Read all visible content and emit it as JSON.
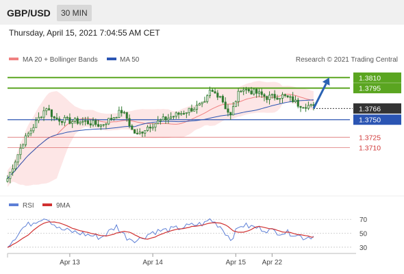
{
  "header": {
    "symbol": "GBP/USD",
    "timeframe": "30 MIN"
  },
  "timestamp": "Thursday, April 15, 2021 7:04:55 AM CET",
  "colors": {
    "resistance": "#5aa520",
    "support": "#2b55b3",
    "secondary": "#d03a3a",
    "bollinger_fill": "#fde6e6",
    "ma20": "#f08080",
    "ma50": "#2b55b3",
    "candle": "#2f7a2f",
    "arrow": "#2b63b3",
    "current": "#333333",
    "rsi": "#5d7fd6",
    "rsi_ma": "#d03030"
  },
  "chart_data": [
    {
      "type": "candlestick",
      "legend": [
        {
          "label": "MA 20 + Bollinger Bands",
          "color": "#f08080"
        },
        {
          "label": "MA 50",
          "color": "#2b55b3"
        }
      ],
      "credit": "Research © 2021 Trading Central",
      "ylim": [
        1.3653,
        1.3823
      ],
      "levels": [
        {
          "value": 1.381,
          "label": "1.3810",
          "kind": "resistance"
        },
        {
          "value": 1.3795,
          "label": "1.3795",
          "kind": "resistance"
        },
        {
          "value": 1.3766,
          "label": "1.3766",
          "kind": "current"
        },
        {
          "value": 1.375,
          "label": "1.3750",
          "kind": "support"
        },
        {
          "value": 1.3725,
          "label": "1.3725",
          "kind": "secondary"
        },
        {
          "value": 1.371,
          "label": "1.3710",
          "kind": "secondary"
        }
      ],
      "waypoints": [
        [
          0,
          1.3666
        ],
        [
          6,
          1.3718
        ],
        [
          12,
          1.3752
        ],
        [
          15,
          1.3768
        ],
        [
          18,
          1.3752
        ],
        [
          24,
          1.3748
        ],
        [
          30,
          1.3747
        ],
        [
          36,
          1.3742
        ],
        [
          40,
          1.3752
        ],
        [
          44,
          1.3762
        ],
        [
          46,
          1.3752
        ],
        [
          48,
          1.3735
        ],
        [
          50,
          1.3728
        ],
        [
          54,
          1.374
        ],
        [
          60,
          1.375
        ],
        [
          66,
          1.3758
        ],
        [
          72,
          1.3767
        ],
        [
          76,
          1.3772
        ],
        [
          78,
          1.379
        ],
        [
          82,
          1.3785
        ],
        [
          84,
          1.3768
        ],
        [
          86,
          1.3755
        ],
        [
          88,
          1.3778
        ],
        [
          90,
          1.3795
        ],
        [
          96,
          1.3788
        ],
        [
          100,
          1.3782
        ],
        [
          106,
          1.3784
        ],
        [
          110,
          1.3778
        ],
        [
          112,
          1.3772
        ],
        [
          116,
          1.377
        ],
        [
          118,
          1.3767
        ]
      ],
      "forecast_arrow": {
        "from": [
          118,
          1.3766
        ],
        "to": [
          124,
          1.381
        ]
      }
    },
    {
      "type": "line",
      "legend": [
        {
          "label": "RSI",
          "color": "#5d7fd6"
        },
        {
          "label": "9MA",
          "color": "#d03030"
        }
      ],
      "ylim": [
        25,
        80
      ],
      "yticks": [
        70,
        50,
        30
      ],
      "waypoints": [
        [
          0,
          32
        ],
        [
          6,
          58
        ],
        [
          12,
          70
        ],
        [
          15,
          73
        ],
        [
          20,
          56
        ],
        [
          28,
          50
        ],
        [
          36,
          44
        ],
        [
          42,
          60
        ],
        [
          46,
          44
        ],
        [
          50,
          40
        ],
        [
          56,
          52
        ],
        [
          64,
          56
        ],
        [
          72,
          62
        ],
        [
          76,
          64
        ],
        [
          78,
          70
        ],
        [
          82,
          60
        ],
        [
          86,
          42
        ],
        [
          90,
          62
        ],
        [
          96,
          58
        ],
        [
          104,
          52
        ],
        [
          110,
          50
        ],
        [
          114,
          44
        ],
        [
          118,
          46
        ]
      ]
    }
  ],
  "x_axis": {
    "range": [
      0,
      132
    ],
    "ticks": [
      {
        "label": "Apr 13",
        "x": 24
      },
      {
        "label": "Apr 14",
        "x": 56
      },
      {
        "label": "Apr 15",
        "x": 88
      },
      {
        "label": "Apr 22",
        "x": 102
      }
    ]
  }
}
